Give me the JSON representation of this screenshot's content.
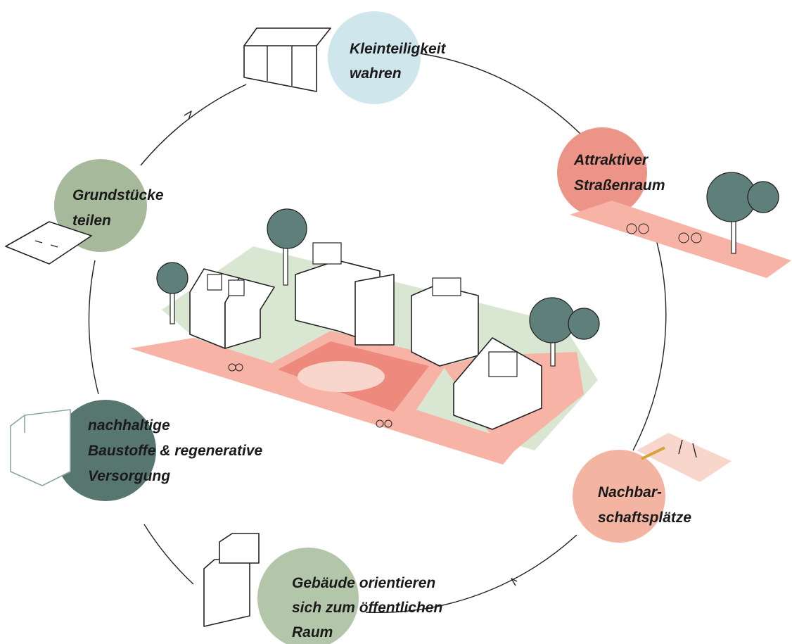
{
  "labels": [
    {
      "lines": [
        "Kleinteiligkeit",
        "wahren"
      ]
    },
    {
      "lines": [
        "Attraktiver",
        "Straßenraum"
      ]
    },
    {
      "lines": [
        "Grundstücke",
        "teilen"
      ]
    },
    {
      "lines": [
        "nachhaltige",
        "Baustoffe & regenerative",
        "Versorgung"
      ]
    },
    {
      "lines": [
        "Nachbar-",
        "schaftsplätze"
      ]
    },
    {
      "lines": [
        "Gebäude orientieren",
        "sich zum öffentlichen",
        "Raum"
      ]
    }
  ]
}
